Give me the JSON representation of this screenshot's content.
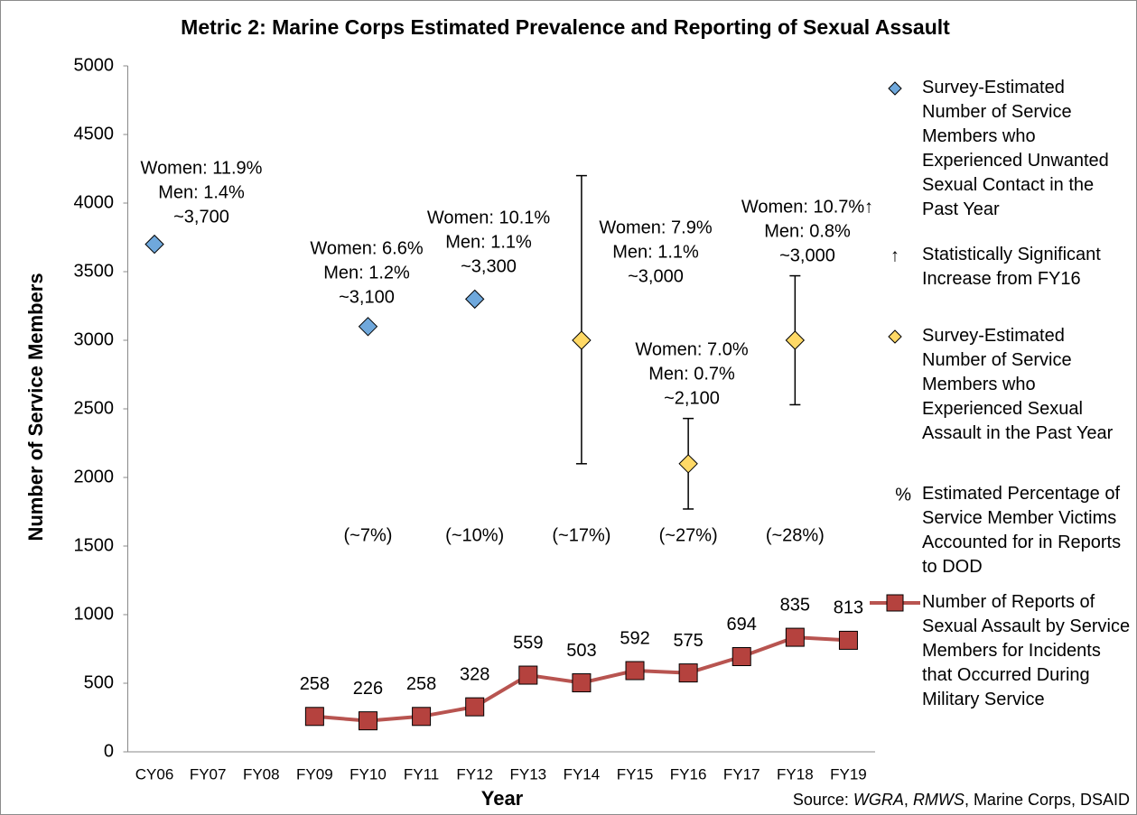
{
  "chart_data": {
    "type": "line",
    "title": "Metric 2: Marine Corps Estimated Prevalence and Reporting of Sexual Assault",
    "x_label": "Year",
    "y_label": "Number of Service Members",
    "categories": [
      "CY06",
      "FY07",
      "FY08",
      "FY09",
      "FY10",
      "FY11",
      "FY12",
      "FY13",
      "FY14",
      "FY15",
      "FY16",
      "FY17",
      "FY18",
      "FY19"
    ],
    "ylim": [
      0,
      5000
    ],
    "yticks": [
      0,
      500,
      1000,
      1500,
      2000,
      2500,
      3000,
      3500,
      4000,
      4500,
      5000
    ],
    "grid": false,
    "series": [
      {
        "name": "Survey-Estimated Number of Service Members who Experienced Unwanted Sexual Contact in the Past Year",
        "type": "scatter",
        "marker": "diamond",
        "color": "#6fa8dc",
        "values": [
          3700,
          null,
          null,
          null,
          3100,
          null,
          3300,
          null,
          null,
          null,
          null,
          null,
          null,
          null
        ]
      },
      {
        "name": "Survey-Estimated Number of Service Members who Experienced Sexual Assault in the Past Year",
        "type": "scatter",
        "marker": "diamond",
        "color": "#ffd966",
        "values": [
          null,
          null,
          null,
          null,
          null,
          null,
          null,
          null,
          3000,
          null,
          2100,
          null,
          3000,
          null
        ],
        "error_minus": [
          null,
          null,
          null,
          null,
          null,
          null,
          null,
          null,
          900,
          null,
          330,
          null,
          470,
          null
        ],
        "error_plus": [
          null,
          null,
          null,
          null,
          null,
          null,
          null,
          null,
          1200,
          null,
          330,
          null,
          470,
          null
        ]
      },
      {
        "name": "Number of Reports of Sexual Assault by Service Members for Incidents that Occurred During Military Service",
        "type": "line",
        "marker": "square",
        "color": "#b85450",
        "marker_color": "#b5423e",
        "values": [
          null,
          null,
          null,
          258,
          226,
          258,
          328,
          559,
          503,
          592,
          575,
          694,
          835,
          813
        ]
      }
    ],
    "annotations": [
      {
        "lines": [
          "Women: 11.9%",
          "Men: 1.4%",
          "~3,700"
        ]
      },
      {
        "lines": [
          "Women: 6.6%",
          "Men: 1.2%",
          "~3,100"
        ]
      },
      {
        "lines": [
          "Women: 10.1%",
          "Men: 1.1%",
          "~3,300"
        ]
      },
      {
        "lines": [
          "Women: 7.9%",
          "Men: 1.1%",
          "~3,000"
        ]
      },
      {
        "lines": [
          "Women: 7.0%",
          "Men: 0.7%",
          "~2,100"
        ]
      },
      {
        "lines": [
          "Women: 10.7%↑",
          "Men: 0.8%",
          "~3,000"
        ]
      }
    ],
    "percent_labels": [
      "(~7%)",
      "(~10%)",
      "(~17%)",
      "(~27%)",
      "(~28%)"
    ],
    "legend_notes": [
      {
        "symbol": "↑",
        "text": "Statistically Significant Increase from FY16"
      },
      {
        "symbol": "%",
        "text": "Estimated Percentage of Service Member Victims Accounted for in Reports to DOD"
      }
    ],
    "source": [
      "Source: ",
      "WGRA",
      ", ",
      "RMWS",
      ", Marine Corps, DSAID"
    ]
  }
}
